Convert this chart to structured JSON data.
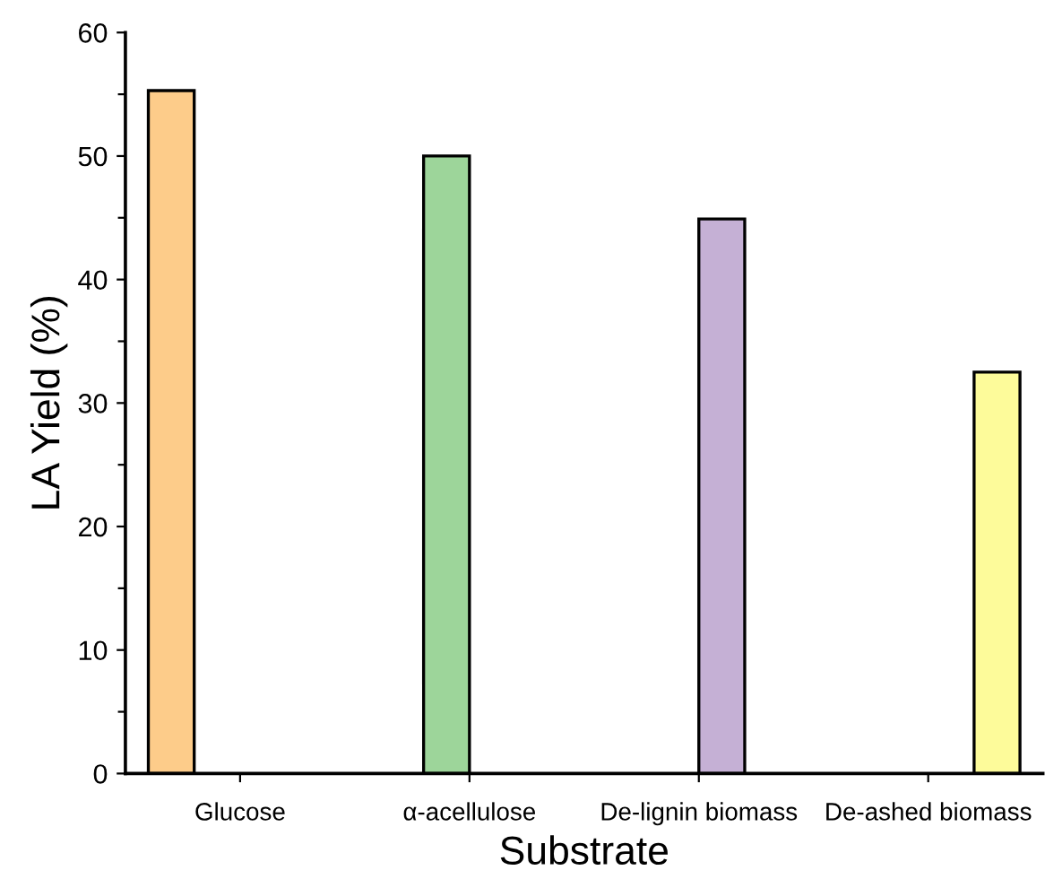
{
  "chart_data": {
    "type": "bar",
    "xlabel": "Substrate",
    "ylabel": "LA Yield (%)",
    "categories": [
      "Glucose",
      "α-acellulose",
      "De-lignin biomass",
      "De-ashed biomass"
    ],
    "series": [
      {
        "color": "#fdcc8a",
        "values": [
          55.3,
          null,
          null,
          null
        ]
      },
      {
        "color": "#9dd59a",
        "values": [
          null,
          50.0,
          null,
          null
        ]
      },
      {
        "color": "#c5b0d5",
        "values": [
          null,
          null,
          44.9,
          null
        ]
      },
      {
        "color": "#fdfb9a",
        "values": [
          null,
          null,
          null,
          32.5
        ]
      }
    ],
    "ylim": [
      0,
      60
    ],
    "yticks": [
      0,
      {
        "value": 5,
        "label": null
      },
      10,
      {
        "value": 15,
        "label": null
      },
      20,
      {
        "value": 25,
        "label": null
      },
      30,
      {
        "value": 35,
        "label": null
      },
      40,
      {
        "value": 45,
        "label": null
      },
      50,
      {
        "value": 55,
        "label": null
      },
      60
    ],
    "grid": false,
    "legend": false
  }
}
